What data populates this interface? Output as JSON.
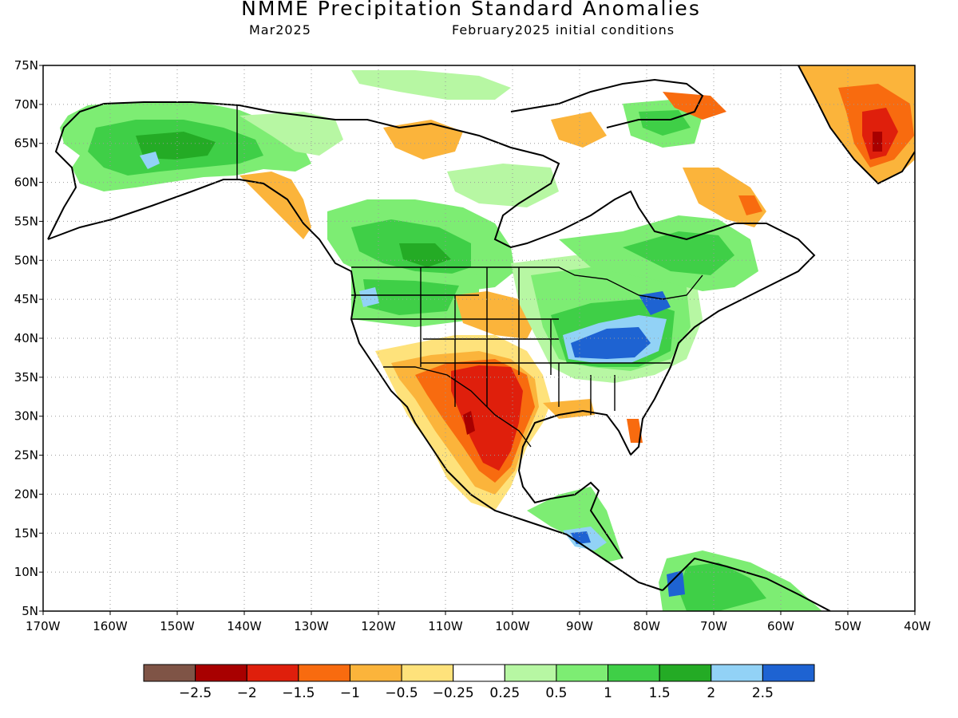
{
  "header": {
    "title": "NMME Precipitation Standard Anomalies",
    "valid_month": "Mar2025",
    "initial_conditions": "February2025 initial conditions"
  },
  "map": {
    "lat_ticks": [
      "75N",
      "70N",
      "65N",
      "60N",
      "55N",
      "50N",
      "45N",
      "40N",
      "35N",
      "30N",
      "25N",
      "20N",
      "15N",
      "10N",
      "5N"
    ],
    "lon_ticks": [
      "170W",
      "160W",
      "150W",
      "140W",
      "130W",
      "120W",
      "110W",
      "100W",
      "90W",
      "80W",
      "70W",
      "60W",
      "50W",
      "40W"
    ],
    "lat_range": [
      5,
      75
    ],
    "lon_range": [
      -170,
      -40
    ],
    "grid": "dotted",
    "colors": {
      "strong_dry": "#b41f1f",
      "moderate_dry": "#e2411b",
      "dry": "#f48a1e",
      "slight_dry": "#f6b43a",
      "near_normal": "#ffffff",
      "slight_wet": "#91e98b",
      "wet": "#3fc24a",
      "very_wet": "#1e9e2f",
      "extreme_wet": "#2367d3"
    }
  },
  "colorbar": {
    "labels": [
      "−2.5",
      "−2",
      "−1.5",
      "−1",
      "−0.5",
      "−0.25",
      "0.25",
      "0.5",
      "1",
      "1.5",
      "2",
      "2.5"
    ],
    "colors": [
      "#7f5446",
      "#a80000",
      "#df1f0c",
      "#f86b0f",
      "#fbb43b",
      "#fee27b",
      "#ffffff",
      "#b7f7a3",
      "#7ded73",
      "#3fcf47",
      "#24ab25",
      "#92d2f6",
      "#1e63d2"
    ]
  }
}
